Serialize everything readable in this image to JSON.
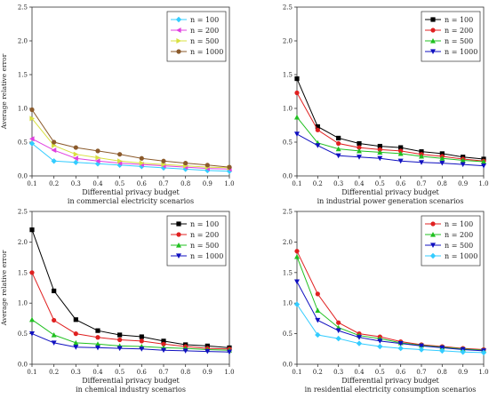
{
  "chart_data": [
    {
      "type": "line",
      "ylabel": "Average relative error",
      "xlabel": "Differential privacy budget",
      "caption": "in commercial electricity scenarios",
      "x": [
        0.1,
        0.2,
        0.3,
        0.4,
        0.5,
        0.6,
        0.7,
        0.8,
        0.9,
        1.0
      ],
      "xlim": [
        0.1,
        1.0
      ],
      "ylim": [
        0.0,
        2.5
      ],
      "xticks": [
        "0.1",
        "0.2",
        "0.3",
        "0.4",
        "0.5",
        "0.6",
        "0.7",
        "0.8",
        "0.9",
        "1.0"
      ],
      "yticks": [
        "0.0",
        "0.5",
        "1.0",
        "1.5",
        "2.0",
        "2.5"
      ],
      "legend_position": "top-right",
      "series": [
        {
          "name": "n = 100",
          "color": "#33ccff",
          "marker": "diamond",
          "values": [
            0.48,
            0.22,
            0.2,
            0.18,
            0.16,
            0.14,
            0.12,
            0.1,
            0.08,
            0.07
          ]
        },
        {
          "name": "n = 200",
          "color": "#e040e0",
          "marker": "triangle-left",
          "values": [
            0.55,
            0.38,
            0.26,
            0.22,
            0.19,
            0.17,
            0.15,
            0.13,
            0.11,
            0.1
          ]
        },
        {
          "name": "n = 500",
          "color": "#d8e040",
          "marker": "triangle-right",
          "values": [
            0.85,
            0.45,
            0.32,
            0.27,
            0.22,
            0.19,
            0.17,
            0.15,
            0.13,
            0.12
          ]
        },
        {
          "name": "n = 1000",
          "color": "#8b5a2b",
          "marker": "circle",
          "values": [
            0.98,
            0.5,
            0.42,
            0.37,
            0.32,
            0.26,
            0.22,
            0.19,
            0.16,
            0.13
          ]
        }
      ]
    },
    {
      "type": "line",
      "ylabel": "",
      "xlabel": "Differential privacy budget",
      "caption": "in industrial power generation scenarios",
      "x": [
        0.1,
        0.2,
        0.3,
        0.4,
        0.5,
        0.6,
        0.7,
        0.8,
        0.9,
        1.0
      ],
      "xlim": [
        0.1,
        1.0
      ],
      "ylim": [
        0.0,
        2.5
      ],
      "xticks": [
        "0.1",
        "0.2",
        "0.3",
        "0.4",
        "0.5",
        "0.6",
        "0.7",
        "0.8",
        "0.9",
        "1.0"
      ],
      "yticks": [
        "0.0",
        "0.5",
        "1.0",
        "1.5",
        "2.0",
        "2.5"
      ],
      "legend_position": "top-right",
      "series": [
        {
          "name": "n = 100",
          "color": "#000000",
          "marker": "square",
          "values": [
            1.44,
            0.73,
            0.56,
            0.48,
            0.44,
            0.42,
            0.36,
            0.33,
            0.28,
            0.25
          ]
        },
        {
          "name": "n = 200",
          "color": "#e02020",
          "marker": "circle",
          "values": [
            1.23,
            0.68,
            0.48,
            0.42,
            0.39,
            0.37,
            0.32,
            0.29,
            0.25,
            0.22
          ]
        },
        {
          "name": "n = 500",
          "color": "#20c020",
          "marker": "triangle-up",
          "values": [
            0.87,
            0.49,
            0.4,
            0.37,
            0.35,
            0.33,
            0.29,
            0.26,
            0.23,
            0.21
          ]
        },
        {
          "name": "n = 1000",
          "color": "#1010c0",
          "marker": "triangle-down",
          "values": [
            0.62,
            0.45,
            0.3,
            0.28,
            0.26,
            0.22,
            0.2,
            0.19,
            0.17,
            0.15
          ]
        }
      ]
    },
    {
      "type": "line",
      "ylabel": "Average relative error",
      "xlabel": "Differential privacy budget",
      "caption": "in chemical industry scenarios",
      "x": [
        0.1,
        0.2,
        0.3,
        0.4,
        0.5,
        0.6,
        0.7,
        0.8,
        0.9,
        1.0
      ],
      "xlim": [
        0.1,
        1.0
      ],
      "ylim": [
        0.0,
        2.5
      ],
      "xticks": [
        "0.1",
        "0.2",
        "0.3",
        "0.4",
        "0.5",
        "0.6",
        "0.7",
        "0.8",
        "0.9",
        "1.0"
      ],
      "yticks": [
        "0.0",
        "0.5",
        "1.0",
        "1.5",
        "2.0",
        "2.5"
      ],
      "legend_position": "top-right",
      "series": [
        {
          "name": "n = 100",
          "color": "#000000",
          "marker": "square",
          "values": [
            2.2,
            1.2,
            0.73,
            0.55,
            0.48,
            0.45,
            0.38,
            0.32,
            0.3,
            0.27
          ]
        },
        {
          "name": "n = 200",
          "color": "#e02020",
          "marker": "circle",
          "values": [
            1.5,
            0.72,
            0.5,
            0.44,
            0.4,
            0.38,
            0.33,
            0.29,
            0.26,
            0.25
          ]
        },
        {
          "name": "n = 500",
          "color": "#20c020",
          "marker": "triangle-up",
          "values": [
            0.73,
            0.48,
            0.35,
            0.33,
            0.3,
            0.29,
            0.27,
            0.26,
            0.24,
            0.23
          ]
        },
        {
          "name": "n = 1000",
          "color": "#1010c0",
          "marker": "triangle-down",
          "values": [
            0.5,
            0.35,
            0.28,
            0.27,
            0.26,
            0.25,
            0.23,
            0.22,
            0.21,
            0.2
          ]
        }
      ]
    },
    {
      "type": "line",
      "ylabel": "",
      "xlabel": "Differential privacy budget",
      "caption": "in residential electricity consumption scenarios",
      "x": [
        0.1,
        0.2,
        0.3,
        0.4,
        0.5,
        0.6,
        0.7,
        0.8,
        0.9,
        1.0
      ],
      "xlim": [
        0.1,
        1.0
      ],
      "ylim": [
        0.0,
        2.5
      ],
      "xticks": [
        "0.1",
        "0.2",
        "0.3",
        "0.4",
        "0.5",
        "0.6",
        "0.7",
        "0.8",
        "0.9",
        "1.0"
      ],
      "yticks": [
        "0.0",
        "0.5",
        "1.0",
        "1.5",
        "2.0",
        "2.5"
      ],
      "legend_position": "top-right",
      "series": [
        {
          "name": "n = 100",
          "color": "#e02020",
          "marker": "circle",
          "values": [
            1.85,
            1.15,
            0.68,
            0.5,
            0.45,
            0.37,
            0.32,
            0.29,
            0.26,
            0.24
          ]
        },
        {
          "name": "n = 200",
          "color": "#20c020",
          "marker": "triangle-up",
          "values": [
            1.76,
            0.88,
            0.6,
            0.47,
            0.42,
            0.35,
            0.31,
            0.28,
            0.25,
            0.23
          ]
        },
        {
          "name": "n = 500",
          "color": "#1010c0",
          "marker": "triangle-down",
          "values": [
            1.35,
            0.72,
            0.55,
            0.44,
            0.38,
            0.34,
            0.3,
            0.27,
            0.24,
            0.22
          ]
        },
        {
          "name": "n = 1000",
          "color": "#33ccff",
          "marker": "diamond",
          "values": [
            0.98,
            0.48,
            0.42,
            0.34,
            0.29,
            0.26,
            0.24,
            0.22,
            0.2,
            0.19
          ]
        }
      ]
    }
  ]
}
